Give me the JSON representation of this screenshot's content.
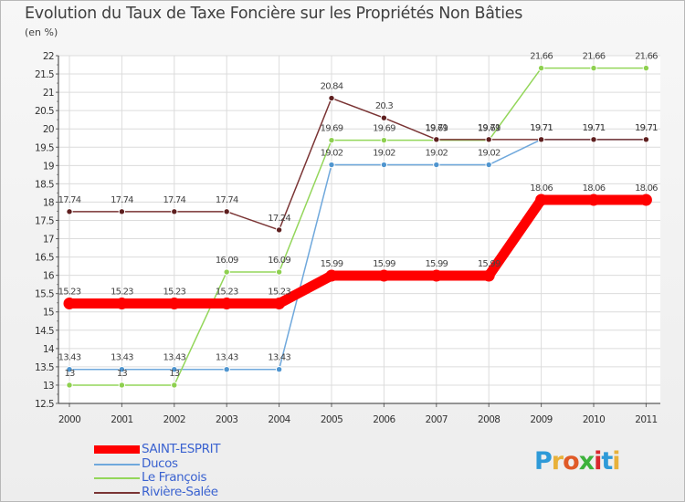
{
  "header": {
    "title": "Evolution du Taux de Taxe Foncière sur les Propriétés Non Bâties",
    "unit": "(en %)"
  },
  "logo": {
    "letters": [
      "P",
      "r",
      "o",
      "x",
      "i",
      "t",
      "i"
    ],
    "colors": [
      "#2e9ad8",
      "#e8b13a",
      "#e05a27",
      "#3db23c",
      "#d9272e",
      "#2e9ad8",
      "#e8b13a"
    ]
  },
  "chart_data": {
    "type": "line",
    "title": "Evolution du Taux de Taxe Foncière sur les Propriétés Non Bâties",
    "ylabel": "(en %)",
    "xlabel": "",
    "x": [
      "2000",
      "2001",
      "2002",
      "2003",
      "2004",
      "2005",
      "2006",
      "2007",
      "2008",
      "2009",
      "2010",
      "2011"
    ],
    "ylim": [
      12.5,
      22
    ],
    "yticks": [
      "12.5",
      "13",
      "13.5",
      "14",
      "14.5",
      "15",
      "15.5",
      "16",
      "16.5",
      "17",
      "17.5",
      "18",
      "18.5",
      "19",
      "19.5",
      "20",
      "20.5",
      "21",
      "21.5",
      "22"
    ],
    "grid": true,
    "legend": "bottom-left",
    "series": [
      {
        "name": "SAINT-ESPRIT",
        "color": "#ff0000",
        "values": [
          15.23,
          15.23,
          15.23,
          15.23,
          15.23,
          15.99,
          15.99,
          15.99,
          15.99,
          18.06,
          18.06,
          18.06
        ],
        "labels": [
          "15.23",
          "15.23",
          "15.23",
          "15.23",
          "15.23",
          "15.99",
          "15.99",
          "15.99",
          "15.99",
          "18.06",
          "18.06",
          "18.06"
        ]
      },
      {
        "name": "Ducos",
        "color": "#6fa8dc",
        "values": [
          13.43,
          13.43,
          13.43,
          13.43,
          13.43,
          19.02,
          19.02,
          19.02,
          19.02,
          19.71,
          19.71,
          19.71
        ],
        "labels": [
          "13.43",
          "13.43",
          "13.43",
          "13.43",
          "13.43",
          "19.02",
          "19.02",
          "19.02",
          "19.02",
          "19.71",
          "19.71",
          "19.71"
        ]
      },
      {
        "name": "Le François",
        "color": "#93d65a",
        "values": [
          13,
          13,
          13,
          16.09,
          16.09,
          19.69,
          19.69,
          19.69,
          19.69,
          21.66,
          21.66,
          21.66
        ],
        "labels": [
          "13",
          "13",
          "13",
          "16.09",
          "16.09",
          "19.69",
          "19.69",
          "19.69",
          "19.69",
          "21.66",
          "21.66",
          "21.66"
        ]
      },
      {
        "name": "Rivière-Salée",
        "color": "#7a3434",
        "values": [
          17.74,
          17.74,
          17.74,
          17.74,
          17.24,
          20.84,
          20.3,
          19.71,
          19.71,
          19.71,
          19.71,
          19.71
        ],
        "labels": [
          "17.74",
          "17.74",
          "17.74",
          "17.74",
          "17.24",
          "20.84",
          "20.3",
          "19.71",
          "19.71",
          "19.71",
          "19.71",
          "19.71"
        ]
      }
    ]
  }
}
